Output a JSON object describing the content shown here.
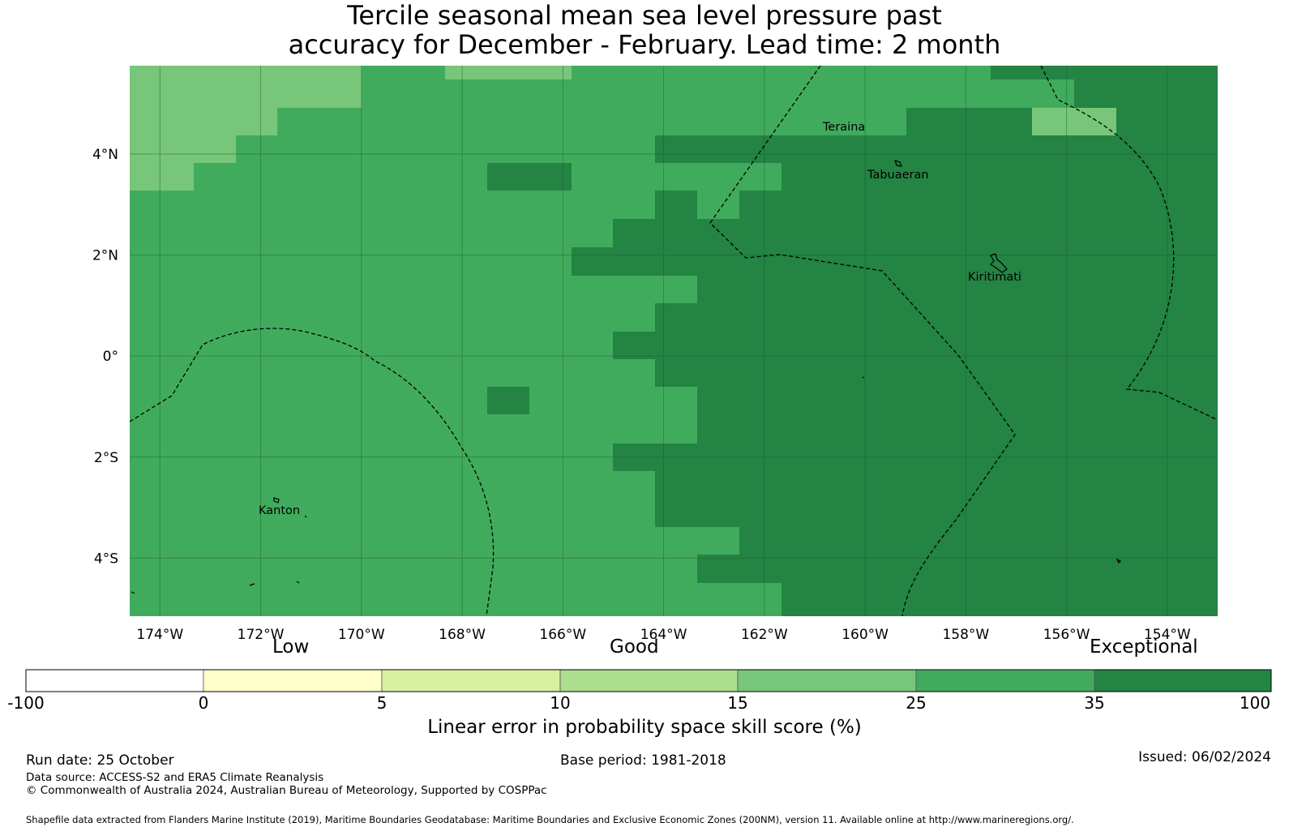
{
  "title": {
    "line1": "Tercile seasonal mean sea level pressure past",
    "line2": "accuracy for December - February. Lead time: 2 month"
  },
  "map": {
    "lon_range": [
      -174.6,
      -153.0
    ],
    "lat_range": [
      -5.15,
      5.75
    ],
    "lon_ticks": [
      "174°W",
      "172°W",
      "170°W",
      "168°W",
      "166°W",
      "164°W",
      "162°W",
      "160°W",
      "158°W",
      "156°W",
      "154°W"
    ],
    "lat_ticks": [
      "4°N",
      "2°N",
      "0°",
      "2°S",
      "4°S"
    ],
    "places": [
      {
        "name": "Teraina"
      },
      {
        "name": "Tabuaeran"
      },
      {
        "name": "Kiritimati"
      },
      {
        "name": "Kanton"
      }
    ],
    "colors": {
      "c15_25": "#78c679",
      "c25_35": "#41ab5d",
      "c35_100": "#238443"
    }
  },
  "legend": {
    "categories": [
      "Low",
      "Good",
      "Exceptional"
    ],
    "boundaries": [
      "-100",
      "0",
      "5",
      "10",
      "15",
      "25",
      "35",
      "100"
    ],
    "colors": [
      "#ffffff",
      "#ffffcc",
      "#d9f0a3",
      "#addd8e",
      "#78c679",
      "#41ab5d",
      "#238443"
    ],
    "label": "Linear error in probability space skill score (%)"
  },
  "footer": {
    "run_date": "Run date: 25 October",
    "base_period": "Base period: 1981-2018",
    "issued": "Issued: 06/02/2024",
    "data_source": "Data source: ACCESS-S2 and ERA5 Climate Reanalysis",
    "copyright": "© Commonwealth of Australia 2024, Australian Bureau of Meteorology, Supported by COSPPac",
    "shapefile": "Shapefile data extracted from Flanders Marine Institute (2019), Maritime Boundaries Geodatabase: Maritime Boundaries and Exclusive Economic Zones (200NM), version 11. Available online at http://www.marineregions.org/."
  }
}
